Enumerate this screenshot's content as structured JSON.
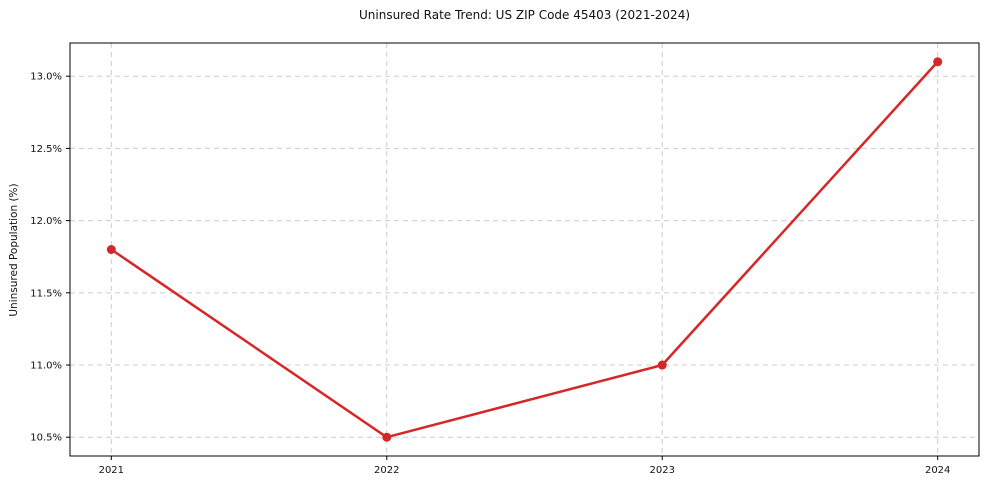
{
  "chart_data": {
    "type": "line",
    "title": "Uninsured Rate Trend: US ZIP Code 45403 (2021-2024)",
    "xlabel": "",
    "ylabel": "Uninsured Population (%)",
    "x": [
      2021,
      2022,
      2023,
      2024
    ],
    "values": [
      11.8,
      10.5,
      11.0,
      13.1
    ],
    "xlim": [
      2020.85,
      2024.15
    ],
    "ylim": [
      10.37,
      13.23
    ],
    "xticks": {
      "values": [
        2021,
        2022,
        2023,
        2024
      ],
      "labels": [
        "2021",
        "2022",
        "2023",
        "2024"
      ]
    },
    "yticks": {
      "values": [
        10.5,
        11.0,
        11.5,
        12.0,
        12.5,
        13.0
      ],
      "labels": [
        "10.5%",
        "11.0%",
        "11.5%",
        "12.0%",
        "12.5%",
        "13.0%"
      ]
    },
    "grid": true,
    "grid_style": "dashed",
    "legend": "none",
    "colors": {
      "line": "#d62728",
      "marker": "#d62728",
      "grid": "#cccccc",
      "spine": "#000000",
      "text": "#111111",
      "background": "#ffffff"
    }
  }
}
